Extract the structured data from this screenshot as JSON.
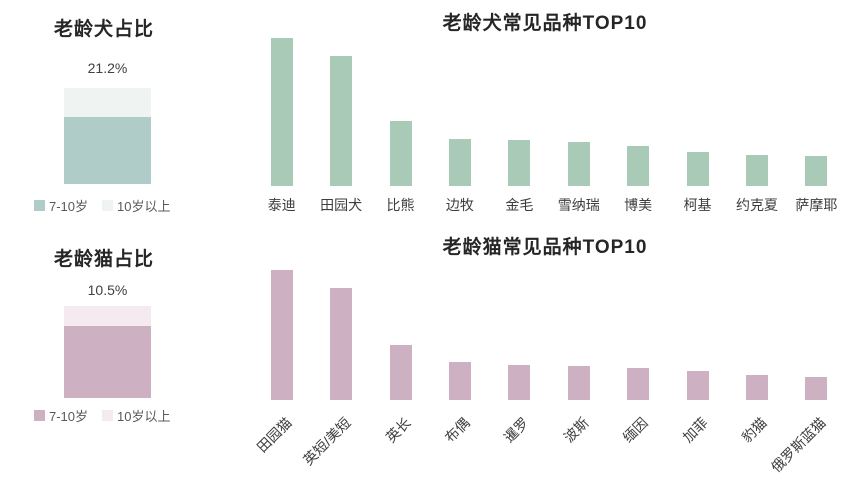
{
  "chart_data": [
    {
      "id": "dog-share",
      "type": "bar",
      "subtype": "single-stacked-column",
      "title": "老龄犬占比",
      "total_label": "21.2%",
      "total_value": 21.2,
      "segments": [
        {
          "label": "7-10岁",
          "color": "#b0ccc9",
          "share_of_bar": 0.7
        },
        {
          "label": "10岁以上",
          "color": "#eff3f1",
          "share_of_bar": 0.3
        }
      ],
      "legend_position": "bottom"
    },
    {
      "id": "dog-breeds-top10",
      "type": "bar",
      "title": "老龄犬常见品种TOP10",
      "categories": [
        "泰迪",
        "田园犬",
        "比熊",
        "边牧",
        "金毛",
        "雪纳瑞",
        "博美",
        "柯基",
        "约克夏",
        "萨摩耶"
      ],
      "values": [
        100,
        88,
        44,
        32,
        31,
        30,
        27,
        23,
        21,
        20
      ],
      "value_note": "relative heights; no value axis shown",
      "bar_color": "#a9cab7",
      "xlabel": "",
      "ylabel": "",
      "grid": false,
      "label_rotation": 0
    },
    {
      "id": "cat-share",
      "type": "bar",
      "subtype": "single-stacked-column",
      "title": "老龄猫占比",
      "total_label": "10.5%",
      "total_value": 10.5,
      "segments": [
        {
          "label": "7-10岁",
          "color": "#cdb0c2",
          "share_of_bar": 0.78
        },
        {
          "label": "10岁以上",
          "color": "#f4eaf0",
          "share_of_bar": 0.22
        }
      ],
      "legend_position": "bottom"
    },
    {
      "id": "cat-breeds-top10",
      "type": "bar",
      "title": "老龄猫常见品种TOP10",
      "categories": [
        "田园猫",
        "英短/美短",
        "英长",
        "布偶",
        "暹罗",
        "波斯",
        "缅因",
        "加菲",
        "豹猫",
        "俄罗斯蓝猫"
      ],
      "values": [
        100,
        86,
        42,
        29,
        27,
        26,
        25,
        22,
        19,
        18
      ],
      "value_note": "relative heights; no value axis shown",
      "bar_color": "#cdb0c2",
      "xlabel": "",
      "ylabel": "",
      "grid": false,
      "label_rotation": -45
    }
  ]
}
